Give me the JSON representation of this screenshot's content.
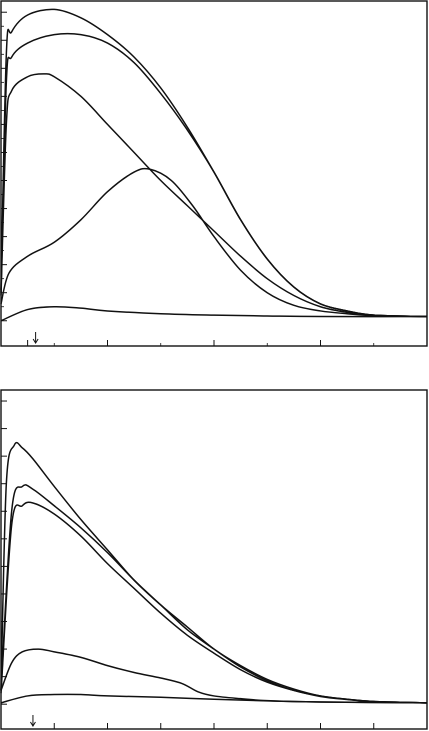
{
  "colors": {
    "line": "#111111",
    "background": "#ffffff"
  },
  "chart_data": [
    {
      "type": "line",
      "title": "",
      "xlabel": "",
      "ylabel": "",
      "xlim": [
        0,
        8
      ],
      "ylim": [
        -0.9,
        11.4
      ],
      "x_ticks": [
        0.5,
        2,
        4,
        6
      ],
      "y_ticks": [
        0,
        1,
        2,
        3,
        4,
        5,
        6,
        7,
        8,
        9,
        10,
        11
      ],
      "x_minor_ticks": [
        1,
        3,
        5,
        7
      ],
      "y_minor_ticks": [
        0.5,
        1.5,
        2.5,
        3.5,
        4.5,
        5.5,
        6.5,
        7.5,
        8.5,
        9.5,
        10.5
      ],
      "injection_marker_x": 0.65,
      "grid": false,
      "series": [
        {
          "values": [
            [
              0,
              1.1
            ],
            [
              0.1,
              9.5
            ],
            [
              0.2,
              10.3
            ],
            [
              0.5,
              10.9
            ],
            [
              1,
              11.1
            ],
            [
              1.5,
              10.8
            ],
            [
              2,
              10.2
            ],
            [
              2.5,
              9.4
            ],
            [
              3,
              8.3
            ],
            [
              3.5,
              6.9
            ],
            [
              4,
              5.3
            ],
            [
              4.5,
              3.6
            ],
            [
              5,
              2.2
            ],
            [
              5.5,
              1.2
            ],
            [
              6,
              0.6
            ],
            [
              6.5,
              0.35
            ],
            [
              7,
              0.2
            ],
            [
              8,
              0.15
            ]
          ]
        },
        {
          "values": [
            [
              0,
              1.0
            ],
            [
              0.1,
              8.5
            ],
            [
              0.2,
              9.4
            ],
            [
              0.5,
              9.9
            ],
            [
              1,
              10.2
            ],
            [
              1.5,
              10.2
            ],
            [
              2,
              9.9
            ],
            [
              2.5,
              9.2
            ],
            [
              3,
              8.1
            ],
            [
              3.5,
              6.8
            ],
            [
              4,
              5.3
            ],
            [
              4.5,
              3.6
            ],
            [
              5,
              2.2
            ],
            [
              5.5,
              1.2
            ],
            [
              6,
              0.6
            ],
            [
              6.5,
              0.35
            ],
            [
              7,
              0.2
            ],
            [
              8,
              0.15
            ]
          ]
        },
        {
          "values": [
            [
              0,
              0.9
            ],
            [
              0.1,
              7
            ],
            [
              0.2,
              8.2
            ],
            [
              0.5,
              8.7
            ],
            [
              0.8,
              8.8
            ],
            [
              1,
              8.7
            ],
            [
              1.5,
              8.0
            ],
            [
              2,
              7.0
            ],
            [
              2.5,
              6.0
            ],
            [
              3,
              5.0
            ],
            [
              3.5,
              4.1
            ],
            [
              4,
              3.2
            ],
            [
              4.5,
              2.3
            ],
            [
              5,
              1.5
            ],
            [
              5.5,
              0.9
            ],
            [
              6,
              0.5
            ],
            [
              6.5,
              0.3
            ],
            [
              7,
              0.2
            ],
            [
              8,
              0.15
            ]
          ]
        },
        {
          "values": [
            [
              0,
              0.6
            ],
            [
              0.15,
              1.7
            ],
            [
              0.5,
              2.3
            ],
            [
              1,
              2.8
            ],
            [
              1.5,
              3.6
            ],
            [
              2,
              4.6
            ],
            [
              2.5,
              5.3
            ],
            [
              2.8,
              5.4
            ],
            [
              3.2,
              5.0
            ],
            [
              3.6,
              4.1
            ],
            [
              4,
              3.0
            ],
            [
              4.5,
              1.8
            ],
            [
              5,
              1.0
            ],
            [
              5.5,
              0.55
            ],
            [
              6,
              0.35
            ],
            [
              6.5,
              0.25
            ],
            [
              7,
              0.18
            ],
            [
              8,
              0.15
            ]
          ]
        },
        {
          "values": [
            [
              0,
              0
            ],
            [
              0.5,
              0.4
            ],
            [
              1,
              0.5
            ],
            [
              1.5,
              0.45
            ],
            [
              2,
              0.35
            ],
            [
              3,
              0.25
            ],
            [
              4,
              0.2
            ],
            [
              5,
              0.17
            ],
            [
              6,
              0.15
            ],
            [
              8,
              0.15
            ]
          ]
        }
      ]
    },
    {
      "type": "line",
      "title": "",
      "xlabel": "",
      "ylabel": "",
      "xlim": [
        0,
        8
      ],
      "ylim": [
        -0.9,
        11.4
      ],
      "x_ticks": [
        1,
        2,
        3,
        4,
        5,
        6,
        7
      ],
      "y_ticks": [
        0,
        1,
        2,
        3,
        4,
        5,
        6,
        7,
        8,
        9,
        10,
        11
      ],
      "injection_marker_x": 0.6,
      "grid": false,
      "series": [
        {
          "values": [
            [
              0,
              0.5
            ],
            [
              0.1,
              8
            ],
            [
              0.25,
              9.4
            ],
            [
              0.4,
              9.3
            ],
            [
              0.6,
              8.9
            ],
            [
              1,
              7.9
            ],
            [
              1.5,
              6.7
            ],
            [
              2,
              5.6
            ],
            [
              2.5,
              4.5
            ],
            [
              3,
              3.6
            ],
            [
              3.5,
              2.8
            ],
            [
              4,
              2.0
            ],
            [
              4.5,
              1.4
            ],
            [
              5,
              0.9
            ],
            [
              5.5,
              0.55
            ],
            [
              6,
              0.3
            ],
            [
              6.5,
              0.18
            ],
            [
              7,
              0.1
            ],
            [
              8,
              0.05
            ]
          ]
        },
        {
          "values": [
            [
              0,
              0.5
            ],
            [
              0.2,
              7
            ],
            [
              0.4,
              7.9
            ],
            [
              0.6,
              7.8
            ],
            [
              1,
              7.2
            ],
            [
              1.5,
              6.4
            ],
            [
              2,
              5.5
            ],
            [
              2.5,
              4.5
            ],
            [
              3,
              3.6
            ],
            [
              3.5,
              2.7
            ],
            [
              4,
              2.0
            ],
            [
              4.5,
              1.35
            ],
            [
              5,
              0.85
            ],
            [
              5.5,
              0.5
            ],
            [
              6,
              0.3
            ],
            [
              6.5,
              0.18
            ],
            [
              7,
              0.1
            ],
            [
              8,
              0.05
            ]
          ]
        },
        {
          "values": [
            [
              0,
              0.4
            ],
            [
              0.2,
              6.5
            ],
            [
              0.4,
              7.2
            ],
            [
              0.6,
              7.3
            ],
            [
              1,
              6.9
            ],
            [
              1.5,
              6.1
            ],
            [
              2,
              5.1
            ],
            [
              2.5,
              4.2
            ],
            [
              3,
              3.3
            ],
            [
              3.5,
              2.5
            ],
            [
              4,
              1.85
            ],
            [
              4.5,
              1.25
            ],
            [
              5,
              0.8
            ],
            [
              5.5,
              0.5
            ],
            [
              6,
              0.28
            ],
            [
              6.5,
              0.17
            ],
            [
              7,
              0.1
            ],
            [
              8,
              0.05
            ]
          ]
        },
        {
          "values": [
            [
              0,
              0.5
            ],
            [
              0.2,
              1.5
            ],
            [
              0.4,
              1.9
            ],
            [
              0.7,
              2.0
            ],
            [
              1,
              1.9
            ],
            [
              1.5,
              1.7
            ],
            [
              2,
              1.4
            ],
            [
              2.5,
              1.15
            ],
            [
              3,
              0.95
            ],
            [
              3.4,
              0.75
            ],
            [
              3.7,
              0.45
            ],
            [
              4,
              0.3
            ],
            [
              4.5,
              0.2
            ],
            [
              5,
              0.13
            ],
            [
              6,
              0.08
            ],
            [
              8,
              0.05
            ]
          ]
        },
        {
          "values": [
            [
              0,
              0.05
            ],
            [
              0.5,
              0.3
            ],
            [
              1,
              0.35
            ],
            [
              1.5,
              0.35
            ],
            [
              2,
              0.3
            ],
            [
              3,
              0.25
            ],
            [
              4,
              0.18
            ],
            [
              5,
              0.12
            ],
            [
              6,
              0.08
            ],
            [
              8,
              0.05
            ]
          ]
        }
      ]
    }
  ]
}
